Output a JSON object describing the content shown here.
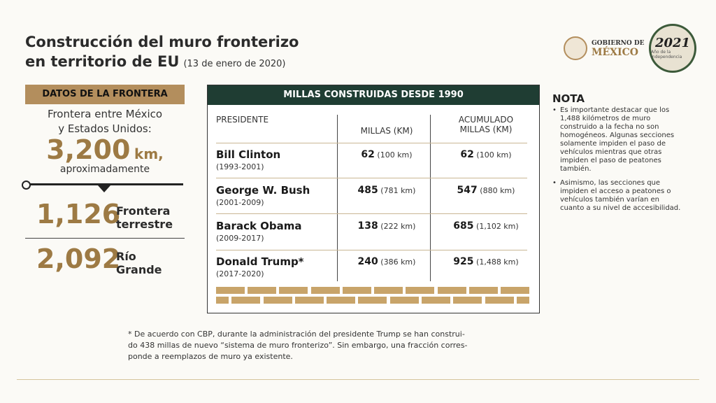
{
  "header": {
    "title_line1": "Construcción del muro fronterizo",
    "title_line2": "en territorio de EU",
    "date": "(13 de enero de 2020)"
  },
  "logos": {
    "gobierno_line1": "GOBIERNO DE",
    "gobierno_line2": "MÉXICO",
    "year_logo": "2021",
    "year_logo_sub": "Año de la Independencia"
  },
  "frontera": {
    "label": "DATOS DE LA FRONTERA",
    "line1": "Frontera entre México",
    "line2": "y Estados Unidos:",
    "total_value": "3,200",
    "total_unit": "km,",
    "approx": "aproximadamente",
    "terrestre_value": "1,126",
    "terrestre_label1": "Frontera",
    "terrestre_label2": "terrestre",
    "rio_value": "2,092",
    "rio_label1": "Río",
    "rio_label2": "Grande"
  },
  "table": {
    "title": "MILLAS CONSTRUIDAS DESDE 1990",
    "col_president": "PRESIDENTE",
    "col_miles": "MILLAS (KM)",
    "col_cum_1": "ACUMULADO",
    "col_cum_2": "MILLAS (KM)",
    "rows": [
      {
        "name": "Bill Clinton",
        "years": "(1993-2001)",
        "miles": "62",
        "km": "(100 km)",
        "cum_miles": "62",
        "cum_km": "(100 km)"
      },
      {
        "name": "George W. Bush",
        "years": "(2001-2009)",
        "miles": "485",
        "km": "(781 km)",
        "cum_miles": "547",
        "cum_km": "(880 km)"
      },
      {
        "name": "Barack Obama",
        "years": "(2009-2017)",
        "miles": "138",
        "km": "(222 km)",
        "cum_miles": "685",
        "cum_km": "(1,102 km)"
      },
      {
        "name": "Donald Trump*",
        "years": "(2017-2020)",
        "miles": "240",
        "km": "(386 km)",
        "cum_miles": "925",
        "cum_km": "(1,488 km)"
      }
    ]
  },
  "nota": {
    "title": "NOTA",
    "items": [
      "Es importante destacar que los 1,488 kilómetros de muro construido a la fecha no son homogéneos. Algunas secciones solamente impiden el paso de vehículos mientras que otras impiden el paso de peatones también.",
      "Asimismo, las secciones que impiden el acceso a peatones o vehículos también varían en cuanto a su nivel de accesibilidad."
    ]
  },
  "footnote": {
    "line1": "* De acuerdo con CBP, durante la administración del presidente Trump se han construi-",
    "line2": "do 438 millas de nuevo “sistema de muro fronterizo”. Sin embargo, una fracción corres-",
    "line3": "ponde a reemplazos de muro ya existente."
  },
  "colors": {
    "gold": "#b38e5d",
    "gold_text": "#9d7a44",
    "dark_green": "#1f3d33",
    "background": "#fbfaf6"
  }
}
